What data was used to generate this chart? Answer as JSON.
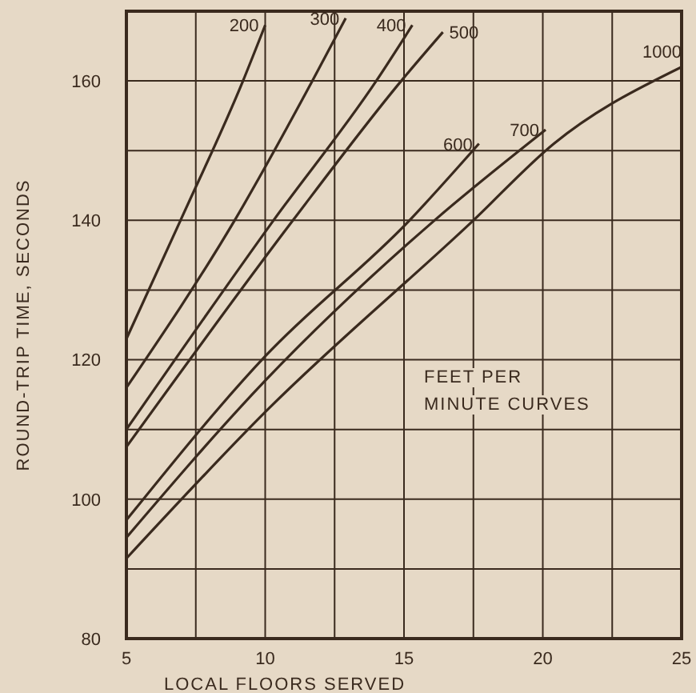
{
  "chart_data": {
    "type": "line",
    "xlabel": "LOCAL FLOORS SERVED",
    "ylabel": "ROUND-TRIP TIME, SECONDS",
    "xlim": [
      5,
      25
    ],
    "xticks": [
      5,
      {
        "value": 7.5,
        "label": null
      },
      10,
      {
        "value": 12.5,
        "label": null
      },
      15,
      {
        "value": 17.5,
        "label": null
      },
      20,
      {
        "value": 22.5,
        "label": null
      },
      25
    ],
    "ylim": [
      80,
      170
    ],
    "yticks": [
      80,
      {
        "value": 90,
        "label": null
      },
      100,
      {
        "value": 110,
        "label": null
      },
      120,
      {
        "value": 130,
        "label": null
      },
      140,
      {
        "value": 150,
        "label": null
      },
      160
    ],
    "grid": true,
    "marker": "none",
    "line_style": "solid",
    "series": [
      {
        "name": "200",
        "color": "#3a2a1e",
        "x": [
          5,
          6.95,
          9.2,
          10
        ],
        "values": [
          123,
          140,
          160,
          168
        ]
      },
      {
        "name": "300",
        "color": "#3a2a1e",
        "x": [
          5,
          8.9,
          11.7,
          12.9
        ],
        "values": [
          116,
          140,
          160,
          169
        ]
      },
      {
        "name": "400",
        "color": "#3a2a1e",
        "x": [
          5,
          10.3,
          14,
          15.3
        ],
        "values": [
          110,
          140,
          160,
          168
        ]
      },
      {
        "name": "500",
        "color": "#3a2a1e",
        "x": [
          5,
          11,
          14.9,
          16.4
        ],
        "values": [
          107.5,
          140,
          160,
          167
        ]
      },
      {
        "name": "600",
        "color": "#3a2a1e",
        "x": [
          5,
          10,
          15.2,
          17.7
        ],
        "values": [
          97,
          120.5,
          140,
          151
        ]
      },
      {
        "name": "700",
        "color": "#3a2a1e",
        "x": [
          5,
          10,
          16.1,
          20.1
        ],
        "values": [
          94.5,
          117,
          140,
          153
        ]
      },
      {
        "name": "1000",
        "color": "#3a2a1e",
        "x": [
          5,
          10,
          17.5,
          20.4,
          25
        ],
        "values": [
          91.5,
          112.5,
          140,
          151,
          162
        ]
      }
    ],
    "annotations": [
      "FEET PER MINUTE CURVES"
    ]
  }
}
